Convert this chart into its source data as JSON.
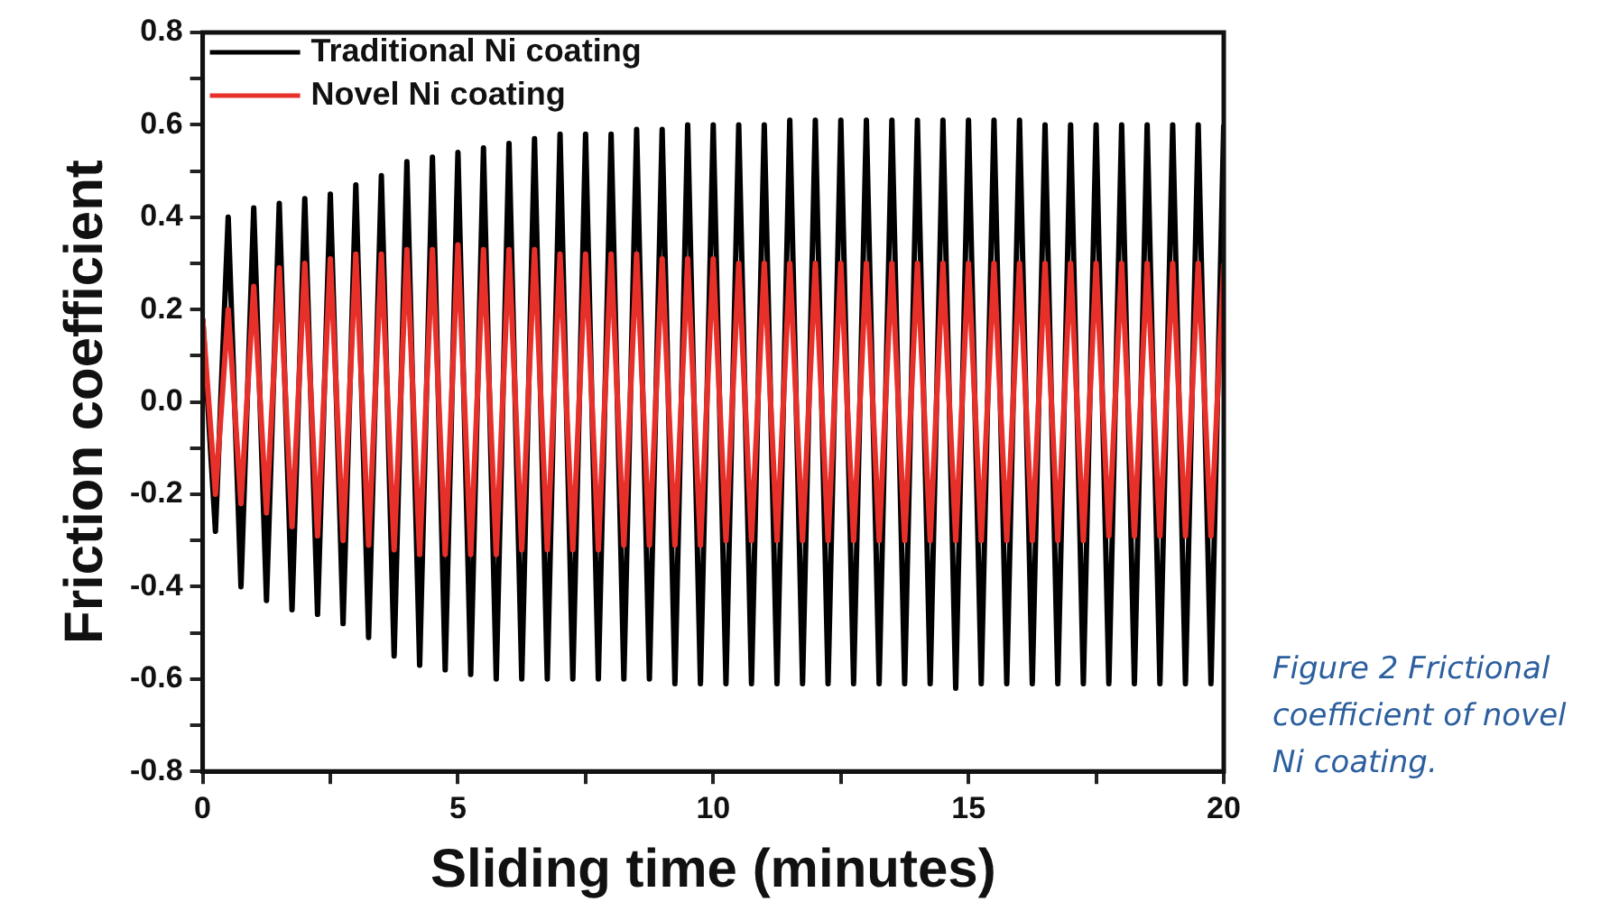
{
  "chart_data": {
    "type": "line",
    "xlabel": "Sliding time (minutes)",
    "ylabel": "Friction coefficient",
    "annotations": [
      "Figure 2 Frictional coefficient of novel Ni coating."
    ],
    "x": [
      0,
      0.25,
      0.5,
      0.75,
      1,
      1.25,
      1.5,
      1.75,
      2,
      2.25,
      2.5,
      2.75,
      3,
      3.25,
      3.5,
      3.75,
      4,
      4.25,
      4.5,
      4.75,
      5,
      5.25,
      5.5,
      5.75,
      6,
      6.25,
      6.5,
      6.75,
      7,
      7.25,
      7.5,
      7.75,
      8,
      8.25,
      8.5,
      8.75,
      9,
      9.25,
      9.5,
      9.75,
      10,
      10.25,
      10.5,
      10.75,
      11,
      11.25,
      11.5,
      11.75,
      12,
      12.25,
      12.5,
      12.75,
      13,
      13.25,
      13.5,
      13.75,
      14,
      14.25,
      14.5,
      14.75,
      15,
      15.25,
      15.5,
      15.75,
      16,
      16.25,
      16.5,
      16.75,
      17,
      17.25,
      17.5,
      17.75,
      18,
      18.25,
      18.5,
      18.75,
      19,
      19.25,
      19.5,
      19.75,
      20
    ],
    "series": [
      {
        "name": "Traditional Ni coating",
        "color": "#000000",
        "values": [
          0.18,
          -0.28,
          0.4,
          -0.4,
          0.42,
          -0.43,
          0.43,
          -0.45,
          0.44,
          -0.46,
          0.45,
          -0.48,
          0.47,
          -0.51,
          0.49,
          -0.55,
          0.52,
          -0.57,
          0.53,
          -0.58,
          0.54,
          -0.59,
          0.55,
          -0.6,
          0.56,
          -0.6,
          0.57,
          -0.6,
          0.58,
          -0.6,
          0.58,
          -0.6,
          0.58,
          -0.6,
          0.59,
          -0.6,
          0.59,
          -0.61,
          0.6,
          -0.61,
          0.6,
          -0.61,
          0.6,
          -0.61,
          0.6,
          -0.61,
          0.61,
          -0.61,
          0.61,
          -0.61,
          0.61,
          -0.61,
          0.61,
          -0.61,
          0.61,
          -0.61,
          0.61,
          -0.61,
          0.61,
          -0.62,
          0.61,
          -0.61,
          0.61,
          -0.61,
          0.61,
          -0.61,
          0.6,
          -0.61,
          0.6,
          -0.61,
          0.6,
          -0.61,
          0.6,
          -0.61,
          0.6,
          -0.61,
          0.6,
          -0.61,
          0.6,
          -0.61,
          0.6
        ]
      },
      {
        "name": "Novel Ni coating",
        "color": "#e8302a",
        "values": [
          0.18,
          -0.2,
          0.2,
          -0.22,
          0.25,
          -0.24,
          0.29,
          -0.27,
          0.3,
          -0.29,
          0.31,
          -0.3,
          0.32,
          -0.31,
          0.32,
          -0.32,
          0.33,
          -0.33,
          0.33,
          -0.33,
          0.34,
          -0.33,
          0.33,
          -0.33,
          0.33,
          -0.32,
          0.33,
          -0.32,
          0.32,
          -0.32,
          0.32,
          -0.32,
          0.32,
          -0.31,
          0.32,
          -0.31,
          0.31,
          -0.31,
          0.31,
          -0.31,
          0.31,
          -0.3,
          0.3,
          -0.3,
          0.3,
          -0.3,
          0.3,
          -0.3,
          0.3,
          -0.3,
          0.3,
          -0.3,
          0.3,
          -0.3,
          0.3,
          -0.3,
          0.3,
          -0.3,
          0.3,
          -0.3,
          0.3,
          -0.3,
          0.3,
          -0.3,
          0.3,
          -0.3,
          0.3,
          -0.3,
          0.3,
          -0.3,
          0.3,
          -0.29,
          0.3,
          -0.29,
          0.3,
          -0.29,
          0.3,
          -0.29,
          0.3,
          -0.29,
          0.3
        ]
      }
    ],
    "xlim": [
      0,
      20
    ],
    "xticks": [
      0,
      {
        "value": 2.5,
        "label": null
      },
      5,
      {
        "value": 7.5,
        "label": null
      },
      10,
      {
        "value": 12.5,
        "label": null
      },
      15,
      {
        "value": 17.5,
        "label": null
      },
      20
    ],
    "ylim": [
      -0.8,
      0.8
    ],
    "yticks": [
      -0.8,
      {
        "value": -0.7,
        "label": null
      },
      -0.6,
      {
        "value": -0.5,
        "label": null
      },
      -0.4,
      {
        "value": -0.3,
        "label": null
      },
      -0.2,
      {
        "value": -0.1,
        "label": null
      },
      {
        "value": 0,
        "label": "0.0"
      },
      {
        "value": 0.1,
        "label": null
      },
      0.2,
      {
        "value": 0.3,
        "label": null
      },
      0.4,
      {
        "value": 0.5,
        "label": null
      },
      0.6,
      {
        "value": 0.7,
        "label": null
      },
      0.8
    ],
    "legend": "top left",
    "grid": false,
    "marker": "none",
    "line_style": "solid"
  }
}
